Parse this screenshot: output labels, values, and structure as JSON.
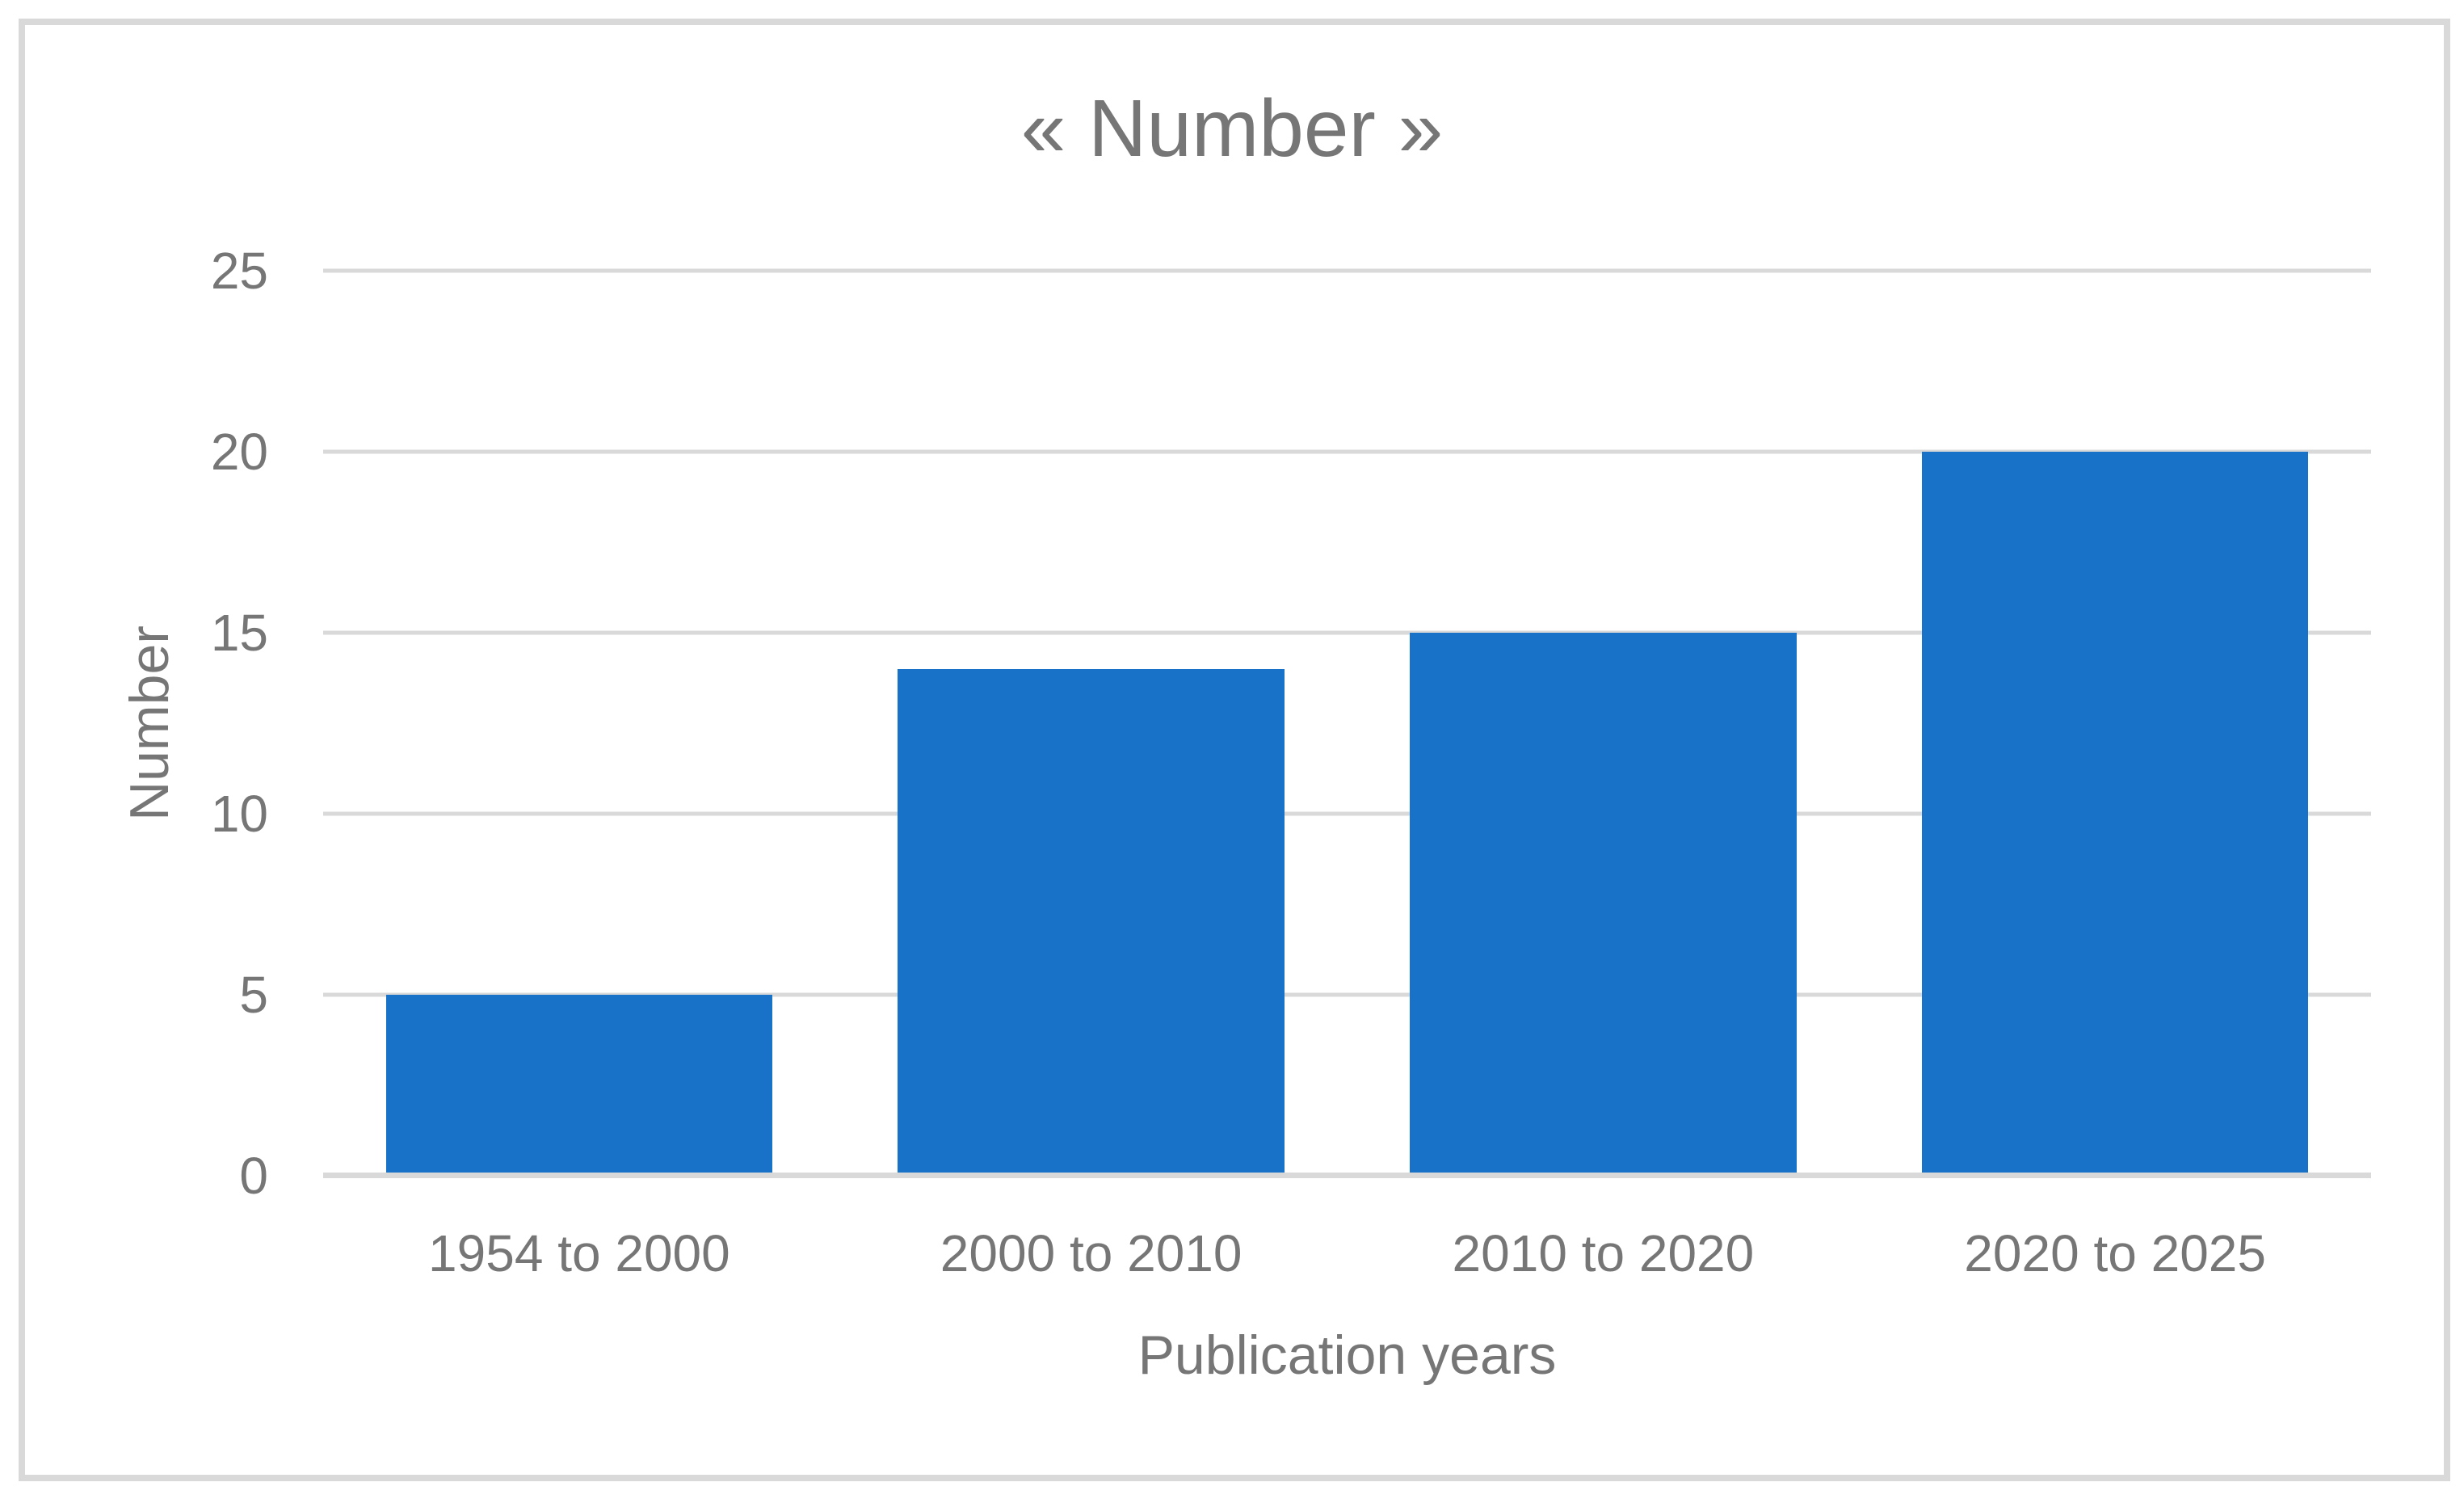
{
  "chart_data": {
    "type": "bar",
    "title": "« Number »",
    "categories": [
      "1954 to 2000",
      "2000 to 2010",
      "2010 to 2020",
      "2020 to 2025"
    ],
    "values": [
      5,
      14,
      15,
      20
    ],
    "xlabel": "Publication years",
    "ylabel": "Number",
    "ylim": [
      0,
      25
    ],
    "yticks": [
      0,
      5,
      10,
      15,
      20,
      25
    ],
    "grid": "horizontal-gridlines",
    "legend": "none",
    "colors": {
      "bar": "#1772C8",
      "gridline": "#D9D9D9",
      "axis_line": "#D9D9D9",
      "text": "#767676",
      "frame_border": "#D9D9D9",
      "background": "#FFFFFF"
    }
  }
}
